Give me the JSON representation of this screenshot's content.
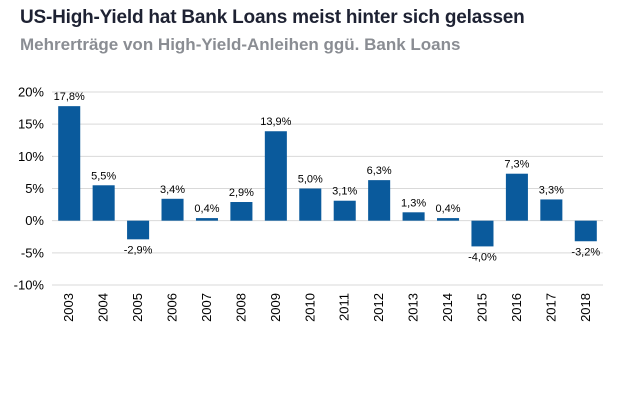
{
  "title": "US-High-Yield hat Bank Loans meist hinter sich gelassen",
  "subtitle": "Mehrerträge von High-Yield-Anleihen ggü. Bank Loans",
  "chart_data": {
    "type": "bar",
    "categories": [
      "2003",
      "2004",
      "2005",
      "2006",
      "2007",
      "2008",
      "2009",
      "2010",
      "2011",
      "2012",
      "2013",
      "2014",
      "2015",
      "2016",
      "2017",
      "2018"
    ],
    "values": [
      17.8,
      5.5,
      -2.9,
      3.4,
      0.4,
      2.9,
      13.9,
      5.0,
      3.1,
      6.3,
      1.3,
      0.4,
      -4.0,
      7.3,
      3.3,
      -3.2
    ],
    "data_labels": [
      "17,8%",
      "5,5%",
      "-2,9%",
      "3,4%",
      "0,4%",
      "2,9%",
      "13,9%",
      "5,0%",
      "3,1%",
      "6,3%",
      "1,3%",
      "0,4%",
      "-4,0%",
      "7,3%",
      "3,3%",
      "-3,2%"
    ],
    "y_ticks": [
      20,
      15,
      10,
      5,
      0,
      -5,
      -10
    ],
    "y_tick_labels": [
      "20%",
      "15%",
      "10%",
      "5%",
      "0%",
      "-5%",
      "-10%"
    ],
    "ylim": [
      -10,
      20
    ],
    "grid": true,
    "bar_color": "#0a5a9c",
    "grid_color": "#d9d9d9",
    "title_color": "#1e2233",
    "subtitle_color": "#8a8d93"
  }
}
